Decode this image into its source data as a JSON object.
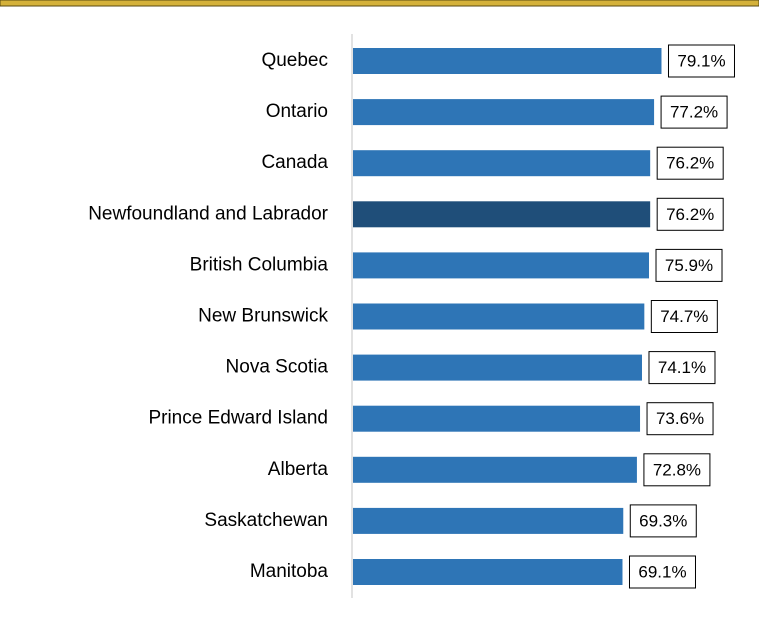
{
  "chart_data": {
    "type": "bar",
    "categories": [
      "Quebec",
      "Ontario",
      "Canada",
      "Newfoundland and Labrador",
      "British Columbia",
      "New Brunswick",
      "Nova Scotia",
      "Prince Edward Island",
      "Alberta",
      "Saskatchewan",
      "Manitoba"
    ],
    "values": [
      79.1,
      77.2,
      76.2,
      76.2,
      75.9,
      74.7,
      74.1,
      73.6,
      72.8,
      69.3,
      69.1
    ],
    "value_labels": [
      "79.1%",
      "77.2%",
      "76.2%",
      "76.2%",
      "75.9%",
      "74.7%",
      "74.1%",
      "73.6%",
      "72.8%",
      "69.3%",
      "69.1%"
    ],
    "colors": [
      "#2e75b6",
      "#2e75b6",
      "#2e75b6",
      "#1f4e79",
      "#2e75b6",
      "#2e75b6",
      "#2e75b6",
      "#2e75b6",
      "#2e75b6",
      "#2e75b6",
      "#2e75b6"
    ]
  }
}
